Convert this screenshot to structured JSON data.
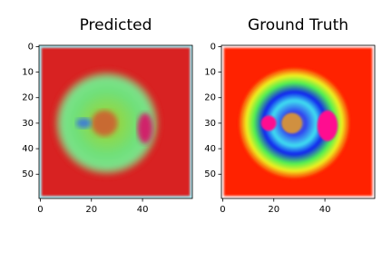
{
  "chart_data": [
    {
      "type": "image",
      "title": "Predicted",
      "xlim": [
        -0.5,
        59.5
      ],
      "ylim": [
        59.5,
        -0.5
      ],
      "xticks": [
        0,
        20,
        40
      ],
      "yticks": [
        0,
        10,
        20,
        30,
        40,
        50
      ]
    },
    {
      "type": "image",
      "title": "Ground Truth",
      "xlim": [
        -0.5,
        59.5
      ],
      "ylim": [
        59.5,
        -0.5
      ],
      "xticks": [
        0,
        20,
        40
      ],
      "yticks": [
        0,
        10,
        20,
        30,
        40,
        50
      ]
    }
  ]
}
